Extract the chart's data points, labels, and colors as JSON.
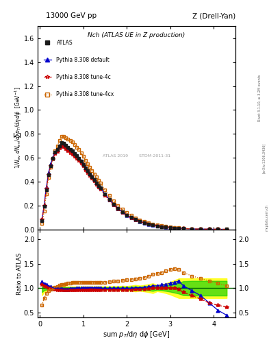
{
  "title_left": "13000 GeV pp",
  "title_right": "Z (Drell-Yan)",
  "plot_title": "Nch (ATLAS UE in Z production)",
  "ylabel_main": "1/N_{ev} dN_{ev}/dsum p_{T}/d#eta d#phi  [GeV^{-1}]",
  "ylabel_ratio": "Ratio to ATLAS",
  "xlabel": "sum p_{T}/d#eta d#phi [GeV]",
  "rivet_text": "Rivet 3.1.10, ≥ 3.2M events",
  "arxiv_text": "[arXiv:1306.3436]",
  "mcplots_text": "mcplots.cern.ch",
  "atlas_watermark": "ATLAS 2019        STDM-2011-31",
  "ylim_main": [
    0.0,
    1.7
  ],
  "ylim_ratio": [
    0.4,
    2.2
  ],
  "yticks_main": [
    0.0,
    0.2,
    0.4,
    0.6,
    0.8,
    1.0,
    1.2,
    1.4,
    1.6
  ],
  "yticks_ratio": [
    0.5,
    1.0,
    1.5,
    2.0
  ],
  "xlim": [
    -0.05,
    4.5
  ],
  "x_atlas": [
    0.05,
    0.1,
    0.15,
    0.2,
    0.25,
    0.3,
    0.35,
    0.4,
    0.45,
    0.5,
    0.55,
    0.6,
    0.65,
    0.7,
    0.75,
    0.8,
    0.85,
    0.9,
    0.95,
    1.0,
    1.05,
    1.1,
    1.15,
    1.2,
    1.25,
    1.3,
    1.35,
    1.4,
    1.5,
    1.6,
    1.7,
    1.8,
    1.9,
    2.0,
    2.1,
    2.2,
    2.3,
    2.4,
    2.5,
    2.6,
    2.7,
    2.8,
    2.9,
    3.0,
    3.1,
    3.2,
    3.3,
    3.5,
    3.7,
    3.9,
    4.1,
    4.3
  ],
  "y_atlas": [
    0.075,
    0.19,
    0.33,
    0.455,
    0.53,
    0.595,
    0.645,
    0.67,
    0.7,
    0.725,
    0.72,
    0.705,
    0.685,
    0.67,
    0.655,
    0.635,
    0.615,
    0.595,
    0.57,
    0.545,
    0.515,
    0.49,
    0.465,
    0.44,
    0.415,
    0.39,
    0.365,
    0.345,
    0.295,
    0.25,
    0.21,
    0.175,
    0.145,
    0.12,
    0.1,
    0.082,
    0.067,
    0.055,
    0.045,
    0.036,
    0.029,
    0.023,
    0.018,
    0.014,
    0.011,
    0.009,
    0.007,
    0.004,
    0.003,
    0.002,
    0.0012,
    0.0007
  ],
  "y_atlas_err": [
    0.006,
    0.008,
    0.01,
    0.011,
    0.012,
    0.013,
    0.013,
    0.014,
    0.014,
    0.014,
    0.014,
    0.013,
    0.013,
    0.013,
    0.012,
    0.012,
    0.012,
    0.011,
    0.011,
    0.011,
    0.01,
    0.01,
    0.009,
    0.009,
    0.008,
    0.008,
    0.008,
    0.007,
    0.006,
    0.005,
    0.005,
    0.004,
    0.004,
    0.003,
    0.003,
    0.003,
    0.002,
    0.002,
    0.002,
    0.002,
    0.001,
    0.001,
    0.001,
    0.001,
    0.001,
    0.001,
    0.001,
    0.001,
    0.001,
    0.001,
    0.001,
    0.001
  ],
  "ratio_default": [
    1.13,
    1.09,
    1.07,
    1.04,
    1.03,
    1.01,
    1.0,
    1.0,
    0.99,
    0.99,
    0.98,
    0.98,
    0.98,
    0.99,
    0.99,
    0.99,
    1.0,
    1.0,
    1.0,
    1.0,
    1.0,
    1.0,
    1.01,
    1.01,
    1.01,
    1.0,
    1.0,
    1.0,
    1.0,
    1.0,
    1.0,
    1.0,
    1.0,
    1.0,
    1.0,
    1.01,
    1.01,
    1.02,
    1.03,
    1.05,
    1.05,
    1.07,
    1.08,
    1.1,
    1.12,
    1.15,
    1.05,
    0.95,
    0.85,
    0.7,
    0.55,
    0.45
  ],
  "ratio_4c": [
    1.08,
    1.05,
    1.03,
    1.01,
    1.0,
    0.99,
    0.98,
    0.97,
    0.97,
    0.97,
    0.96,
    0.96,
    0.96,
    0.96,
    0.96,
    0.96,
    0.97,
    0.97,
    0.97,
    0.97,
    0.97,
    0.97,
    0.97,
    0.97,
    0.97,
    0.97,
    0.97,
    0.97,
    0.97,
    0.97,
    0.97,
    0.97,
    0.97,
    0.97,
    0.97,
    0.98,
    0.98,
    0.98,
    0.99,
    1.0,
    1.0,
    1.0,
    1.0,
    1.0,
    1.0,
    0.98,
    0.92,
    0.85,
    0.78,
    0.7,
    0.65,
    0.62
  ],
  "ratio_4cx": [
    0.65,
    0.8,
    0.9,
    0.95,
    0.98,
    1.0,
    1.02,
    1.04,
    1.06,
    1.07,
    1.08,
    1.09,
    1.1,
    1.11,
    1.12,
    1.12,
    1.12,
    1.12,
    1.12,
    1.12,
    1.12,
    1.12,
    1.12,
    1.12,
    1.12,
    1.12,
    1.12,
    1.12,
    1.12,
    1.13,
    1.14,
    1.15,
    1.16,
    1.17,
    1.18,
    1.19,
    1.2,
    1.22,
    1.25,
    1.28,
    1.3,
    1.32,
    1.35,
    1.38,
    1.4,
    1.38,
    1.32,
    1.25,
    1.2,
    1.15,
    1.1,
    1.05
  ],
  "color_atlas": "#1a1a1a",
  "color_default": "#0000CC",
  "color_tune4c": "#CC0000",
  "color_tune4cx": "#CC6600",
  "legend_entries": [
    "ATLAS",
    "Pythia 8.308 default",
    "Pythia 8.308 tune-4c",
    "Pythia 8.308 tune-4cx"
  ]
}
